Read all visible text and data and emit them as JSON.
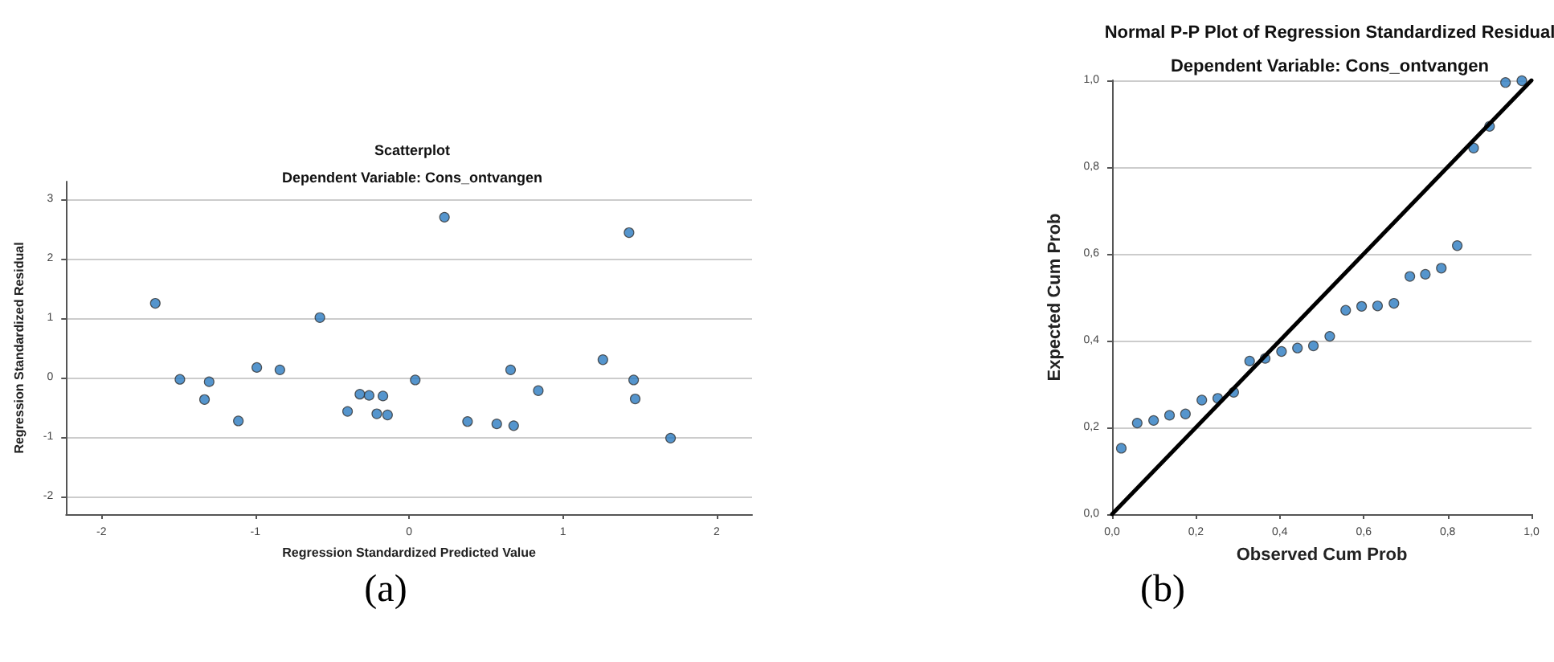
{
  "chart_data": [
    {
      "type": "scatter",
      "title": "Scatterplot",
      "subtitle": "Dependent Variable: Cons_ontvangen",
      "xlabel": "Regression Standardized Predicted Value",
      "ylabel": "Regression Standardized Residual",
      "annotations": [
        "(a)"
      ],
      "x": [
        -1.65,
        -1.49,
        -1.33,
        -1.3,
        -1.11,
        -0.99,
        -0.84,
        -0.58,
        -0.4,
        -0.32,
        -0.26,
        -0.21,
        -0.17,
        -0.14,
        0.04,
        0.23,
        0.38,
        0.57,
        0.66,
        0.68,
        0.84,
        1.26,
        1.43,
        1.46,
        1.47,
        1.7
      ],
      "series": [
        {
          "color": "#2b7bc0",
          "values": [
            1.25,
            -0.03,
            -0.37,
            -0.07,
            -0.73,
            0.17,
            0.13,
            1.01,
            -0.57,
            -0.28,
            -0.3,
            -0.61,
            -0.31,
            -0.63,
            -0.04,
            2.7,
            -0.74,
            -0.78,
            0.13,
            -0.81,
            -0.22,
            0.3,
            2.44,
            -0.04,
            -0.36,
            -1.02
          ]
        }
      ],
      "xlim": [
        -2.23,
        2.23
      ],
      "xticks": [
        -2,
        -1,
        0,
        1,
        2
      ],
      "ylim": [
        -2.3,
        3.3
      ],
      "yticks": [
        -2,
        -1,
        0,
        1,
        2,
        3
      ],
      "grid": "y",
      "marker": "circle"
    },
    {
      "type": "scatter",
      "title": "Normal P-P Plot of Regression Standardized Residual",
      "subtitle": "Dependent Variable: Cons_ontvangen",
      "xlabel": "Observed Cum Prob",
      "ylabel": "Expected Cum Prob",
      "annotations": [
        "(b)"
      ],
      "series": [
        {
          "color": "#2b7bc0",
          "x": [
            0.022,
            0.06,
            0.099,
            0.137,
            0.175,
            0.214,
            0.252,
            0.29,
            0.328,
            0.365,
            0.404,
            0.442,
            0.48,
            0.519,
            0.557,
            0.595,
            0.633,
            0.672,
            0.71,
            0.747,
            0.785,
            0.823,
            0.862,
            0.9,
            0.938,
            0.977
          ],
          "values": [
            0.152,
            0.21,
            0.216,
            0.228,
            0.231,
            0.263,
            0.267,
            0.281,
            0.353,
            0.359,
            0.375,
            0.383,
            0.388,
            0.41,
            0.47,
            0.479,
            0.48,
            0.486,
            0.548,
            0.553,
            0.567,
            0.619,
            0.844,
            0.894,
            0.995,
            0.999
          ]
        },
        {
          "type": "line",
          "color": "#000000",
          "marker": "none",
          "x": [
            0,
            1
          ],
          "values": [
            0,
            1
          ]
        }
      ],
      "xlim": [
        0,
        1
      ],
      "xticks": [
        {
          "value": 0,
          "label": "0,0"
        },
        {
          "value": 0.2,
          "label": "0,2"
        },
        {
          "value": 0.4,
          "label": "0,4"
        },
        {
          "value": 0.6,
          "label": "0,6"
        },
        {
          "value": 0.8,
          "label": "0,8"
        },
        {
          "value": 1,
          "label": "1,0"
        }
      ],
      "ylim": [
        0,
        1
      ],
      "yticks": [
        {
          "value": 0,
          "label": "0,0"
        },
        {
          "value": 0.2,
          "label": "0,2"
        },
        {
          "value": 0.4,
          "label": "0,4"
        },
        {
          "value": 0.6,
          "label": "0,6"
        },
        {
          "value": 0.8,
          "label": "0,8"
        },
        {
          "value": 1,
          "label": "1,0"
        }
      ],
      "grid": "y",
      "marker": "circle"
    }
  ]
}
